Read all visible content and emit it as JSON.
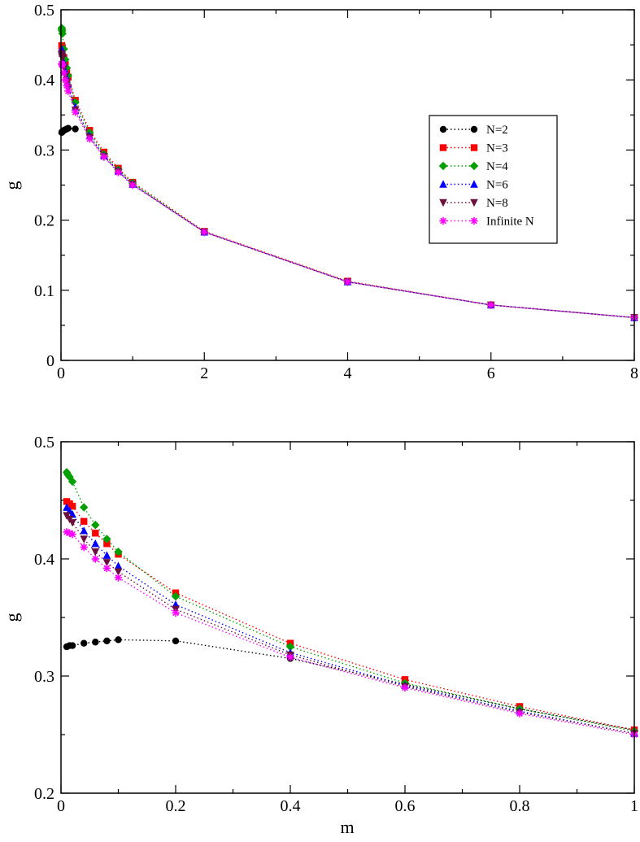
{
  "chart_data": [
    {
      "type": "line",
      "title": "",
      "xlabel": "",
      "ylabel": "g",
      "xlim": [
        0,
        8
      ],
      "ylim": [
        0,
        0.5
      ],
      "xticks": [
        0,
        2,
        4,
        6,
        8
      ],
      "xtick_labels": [
        "0",
        "2",
        "4",
        "6",
        "8"
      ],
      "yticks": [
        0,
        0.1,
        0.2,
        0.3,
        0.4,
        0.5
      ],
      "ytick_labels": [
        "0",
        "0.1",
        "0.2",
        "0.3",
        "0.4",
        "0.5"
      ],
      "legend_position": "right",
      "series": [
        {
          "name": "N=2",
          "color": "#000000",
          "marker": "circle",
          "x": [
            0.01,
            0.015,
            0.02,
            0.04,
            0.06,
            0.08,
            0.1,
            0.2
          ],
          "y": [
            0.325,
            0.326,
            0.326,
            0.328,
            0.329,
            0.33,
            0.331,
            0.33
          ]
        },
        {
          "name": "N=3",
          "color": "#ff0000",
          "marker": "square",
          "x": [
            0.01,
            0.015,
            0.02,
            0.04,
            0.06,
            0.08,
            0.1,
            0.2,
            0.4,
            0.6,
            0.8,
            1,
            2,
            4,
            6,
            8
          ],
          "y": [
            0.449,
            0.447,
            0.445,
            0.432,
            0.422,
            0.413,
            0.404,
            0.371,
            0.328,
            0.297,
            0.274,
            0.254,
            0.184,
            0.113,
            0.079,
            0.061
          ]
        },
        {
          "name": "N=4",
          "color": "#00a000",
          "marker": "diamond",
          "x": [
            0.01,
            0.012,
            0.015,
            0.02,
            0.04,
            0.06,
            0.08,
            0.1,
            0.2,
            0.4,
            0.6,
            0.8,
            1,
            2,
            4,
            6,
            8
          ],
          "y": [
            0.474,
            0.472,
            0.47,
            0.466,
            0.444,
            0.429,
            0.417,
            0.406,
            0.368,
            0.325,
            0.294,
            0.272,
            0.253,
            0.183,
            0.112,
            0.079,
            0.061
          ]
        },
        {
          "name": "N=6",
          "color": "#0000ff",
          "marker": "triangle-up",
          "x": [
            0.01,
            0.015,
            0.02,
            0.04,
            0.06,
            0.08,
            0.1,
            0.2,
            0.4,
            0.6,
            0.8,
            1,
            2,
            4,
            6,
            8
          ],
          "y": [
            0.444,
            0.441,
            0.438,
            0.424,
            0.413,
            0.403,
            0.394,
            0.361,
            0.32,
            0.292,
            0.27,
            0.251,
            0.183,
            0.112,
            0.079,
            0.061
          ]
        },
        {
          "name": "N=8",
          "color": "#6b0f3d",
          "marker": "triangle-down",
          "x": [
            0.01,
            0.015,
            0.02,
            0.04,
            0.06,
            0.08,
            0.1,
            0.2,
            0.4,
            0.6,
            0.8,
            1,
            2,
            4,
            6,
            8
          ],
          "y": [
            0.437,
            0.434,
            0.431,
            0.417,
            0.406,
            0.397,
            0.389,
            0.357,
            0.318,
            0.291,
            0.269,
            0.251,
            0.183,
            0.112,
            0.079,
            0.061
          ]
        },
        {
          "name": "Infinite N",
          "color": "#ff00ff",
          "marker": "asterisk",
          "x": [
            0.01,
            0.015,
            0.02,
            0.04,
            0.06,
            0.08,
            0.1,
            0.2,
            0.4,
            0.6,
            0.8,
            1,
            2,
            4,
            6,
            8
          ],
          "y": [
            0.423,
            0.422,
            0.421,
            0.41,
            0.4,
            0.392,
            0.384,
            0.354,
            0.316,
            0.29,
            0.268,
            0.25,
            0.183,
            0.112,
            0.079,
            0.061
          ]
        }
      ]
    },
    {
      "type": "line",
      "title": "",
      "xlabel": "m",
      "ylabel": "g",
      "xlim": [
        0,
        1
      ],
      "ylim": [
        0.2,
        0.5
      ],
      "xticks": [
        0,
        0.2,
        0.4,
        0.6,
        0.8,
        1
      ],
      "xtick_labels": [
        "0",
        "0.2",
        "0.4",
        "0.6",
        "0.8",
        "1"
      ],
      "yticks": [
        0.2,
        0.3,
        0.4,
        0.5
      ],
      "ytick_labels": [
        "0.2",
        "0.3",
        "0.4",
        "0.5"
      ],
      "legend_position": "none",
      "series": [
        {
          "name": "N=2",
          "color": "#000000",
          "marker": "circle",
          "x": [
            0.01,
            0.015,
            0.02,
            0.04,
            0.06,
            0.08,
            0.1,
            0.2,
            0.4,
            0.6,
            0.8,
            1
          ],
          "y": [
            0.325,
            0.326,
            0.326,
            0.328,
            0.329,
            0.33,
            0.331,
            0.33,
            0.315,
            0.293,
            0.272,
            0.254
          ]
        },
        {
          "name": "N=3",
          "color": "#ff0000",
          "marker": "square",
          "x": [
            0.01,
            0.015,
            0.02,
            0.04,
            0.06,
            0.08,
            0.1,
            0.2,
            0.4,
            0.6,
            0.8,
            1
          ],
          "y": [
            0.449,
            0.447,
            0.445,
            0.432,
            0.422,
            0.413,
            0.404,
            0.371,
            0.328,
            0.297,
            0.274,
            0.254
          ]
        },
        {
          "name": "N=4",
          "color": "#00a000",
          "marker": "diamond",
          "x": [
            0.01,
            0.012,
            0.015,
            0.02,
            0.04,
            0.06,
            0.08,
            0.1,
            0.2,
            0.4,
            0.6,
            0.8,
            1
          ],
          "y": [
            0.474,
            0.472,
            0.47,
            0.466,
            0.444,
            0.429,
            0.417,
            0.406,
            0.368,
            0.325,
            0.294,
            0.272,
            0.253
          ]
        },
        {
          "name": "N=6",
          "color": "#0000ff",
          "marker": "triangle-up",
          "x": [
            0.01,
            0.015,
            0.02,
            0.04,
            0.06,
            0.08,
            0.1,
            0.2,
            0.4,
            0.6,
            0.8,
            1
          ],
          "y": [
            0.444,
            0.441,
            0.438,
            0.424,
            0.413,
            0.403,
            0.394,
            0.361,
            0.32,
            0.292,
            0.27,
            0.251
          ]
        },
        {
          "name": "N=8",
          "color": "#6b0f3d",
          "marker": "triangle-down",
          "x": [
            0.01,
            0.015,
            0.02,
            0.04,
            0.06,
            0.08,
            0.1,
            0.2,
            0.4,
            0.6,
            0.8,
            1
          ],
          "y": [
            0.437,
            0.434,
            0.431,
            0.417,
            0.406,
            0.397,
            0.389,
            0.357,
            0.318,
            0.291,
            0.269,
            0.251
          ]
        },
        {
          "name": "Infinite N",
          "color": "#ff00ff",
          "marker": "asterisk",
          "x": [
            0.01,
            0.015,
            0.02,
            0.04,
            0.06,
            0.08,
            0.1,
            0.2,
            0.4,
            0.6,
            0.8,
            1
          ],
          "y": [
            0.423,
            0.422,
            0.421,
            0.41,
            0.4,
            0.392,
            0.384,
            0.354,
            0.316,
            0.29,
            0.268,
            0.25
          ]
        }
      ]
    }
  ]
}
